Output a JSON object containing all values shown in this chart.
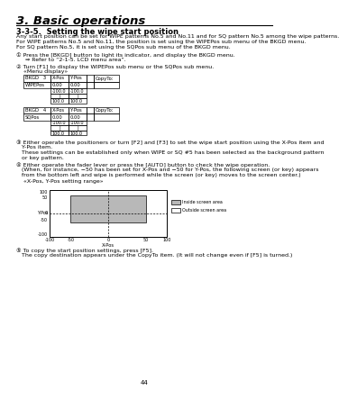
{
  "page_title": "3. Basic operations",
  "section_title": "3-3-5.  Setting the wipe start position",
  "intro_lines": [
    "Any start position can be set for WIPE patterns No.5 and No.11 and for SQ pattern No.5 among the wipe patterns.",
    "For WIPE patterns No.5 and No.11, the position is set using the WIPEPos sub menu of the BKGD menu.",
    "For SQ pattern No.5, it is set using the SQPos sub menu of the BKGD menu."
  ],
  "step1_line1": "① Press the [BKGD] button to light its indicator, and display the BKGD menu.",
  "step1_line2": "   ⇒ Refer to “2-1-5. LCD menu area”.",
  "step2_line1": "② Turn [F1] to display the WIPEPos sub menu or the SQPos sub menu.",
  "menu_display": "«Menu display»",
  "table1_h1": "BKGD   3",
  "table1_h2": "X·Pos",
  "table1_h3": "Y·Pos",
  "table1_h5": "CopyTo:",
  "table1_r1c1": "WIPEPos",
  "table1_r1c2": "0.00",
  "table1_r1c3": "0.00",
  "table1_sub1": "·100.0",
  "table1_sub2": "|",
  "table1_sub3": "100.0",
  "table2_h1": "BKGD   4",
  "table2_h2": "X·Pos",
  "table2_h3": "Y·Pos",
  "table2_h5": "CopyTo:",
  "table2_r1c1": "SQPos",
  "table2_r1c2": "0.00",
  "table2_r1c3": "0.00",
  "table2_sub1": "·100.0",
  "table2_sub2": "|",
  "table2_sub3": "100.0",
  "step3_lines": [
    "③ Either operate the positioners or turn [F2] and [F3] to set the wipe start position using the X-Pos item and",
    "   Y-Pos item.",
    "   These settings can be established only when WIPE or SQ #5 has been selected as the background pattern",
    "   or key pattern."
  ],
  "step4_lines": [
    "④ Either operate the fader lever or press the [AUTO] button to check the wipe operation.",
    "   (When, for instance, −50 has been set for X-Pos and −50 for Y-Pos, the following screen (or key) appears",
    "   from the bottom left and wipe is performed while the screen (or key) moves to the screen center.)"
  ],
  "diag_label": "«X-Pos, Y-Pos setting range»",
  "step5_lines": [
    "⑤ To copy the start position settings, press [F5].",
    "   The copy destination appears under the CopyTo item. (It will not change even if [F5] is turned.)"
  ],
  "page_number": "44",
  "bg_color": "#ffffff",
  "gray_color": "#b8b8b8",
  "text_color": "#000000",
  "line_color": "#000000"
}
